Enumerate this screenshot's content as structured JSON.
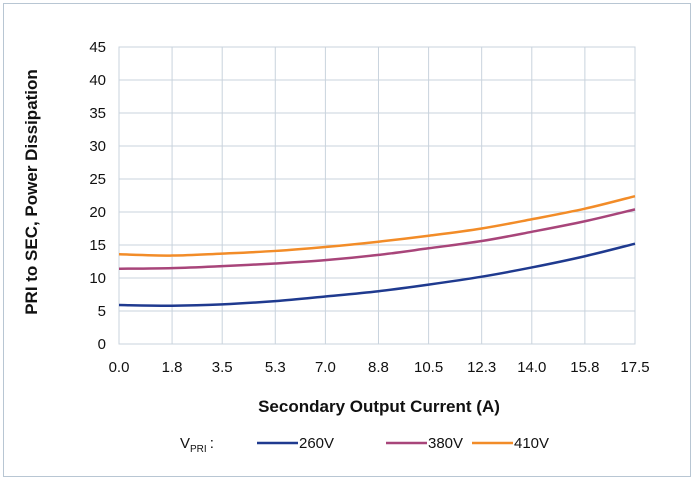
{
  "chart_data": {
    "type": "line",
    "xlabel": "Secondary Output Current (A)",
    "ylabel": "PRI to SEC, Power Dissipation",
    "x": [
      0.0,
      1.8,
      3.5,
      5.3,
      7.0,
      8.8,
      10.5,
      12.3,
      14.0,
      15.8,
      17.5
    ],
    "x_tick_labels": [
      "0.0",
      "1.8",
      "3.5",
      "5.3",
      "7.0",
      "8.8",
      "10.5",
      "12.3",
      "14.0",
      "15.8",
      "17.5"
    ],
    "y_ticks": [
      0,
      5,
      10,
      15,
      20,
      25,
      30,
      35,
      40,
      45
    ],
    "xlim": [
      0.0,
      17.5
    ],
    "ylim": [
      0,
      45
    ],
    "grid": true,
    "legend": {
      "label_main": "V",
      "label_sub": "PRI",
      "label_suffix": ":",
      "placement": "bottom"
    },
    "series": [
      {
        "name": "260V",
        "color": "#1f3a8f",
        "values": [
          5.9,
          5.8,
          6.0,
          6.5,
          7.2,
          8.0,
          9.0,
          10.2,
          11.6,
          13.3,
          15.2
        ]
      },
      {
        "name": "380V",
        "color": "#a8457a",
        "values": [
          11.4,
          11.5,
          11.8,
          12.2,
          12.7,
          13.5,
          14.5,
          15.6,
          17.0,
          18.6,
          20.4
        ]
      },
      {
        "name": "410V",
        "color": "#f28c28",
        "values": [
          13.6,
          13.4,
          13.7,
          14.1,
          14.7,
          15.5,
          16.4,
          17.5,
          18.9,
          20.5,
          22.4
        ]
      }
    ]
  }
}
